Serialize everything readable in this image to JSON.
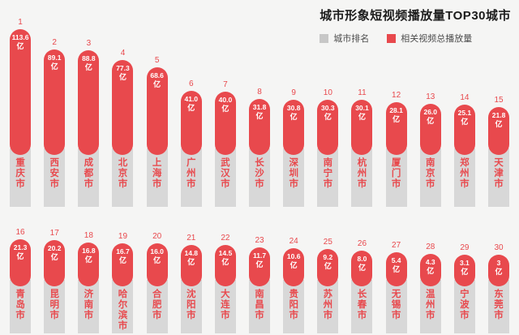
{
  "header": {
    "title": "城市形象短视频播放量TOP30城市"
  },
  "legend": [
    {
      "label": "城市排名",
      "color": "#c7c7c7"
    },
    {
      "label": "相关视频总播放量",
      "color": "#e8494d"
    }
  ],
  "colors": {
    "bar_red": "#e8494d",
    "track_gray": "#d8d8d8",
    "background": "#f5f5f4",
    "title_text": "#1c1c1c",
    "legend_text": "#4c4c4c",
    "value_text": "#ffffff"
  },
  "chart_data": {
    "type": "bar",
    "title": "城市形象短视频播放量TOP30城市",
    "unit": "亿",
    "legend": [
      "城市排名",
      "相关视频总播放量"
    ],
    "layout": "two-row lollipop bars, ranks above bars, vertical city names in gray tracks below",
    "rows": [
      {
        "items": [
          {
            "rank": 1,
            "city": "重庆市",
            "label": "113.6",
            "value": 113.6
          },
          {
            "rank": 2,
            "city": "西安市",
            "label": "89.1",
            "value": 89.1
          },
          {
            "rank": 3,
            "city": "成都市",
            "label": "88.8",
            "value": 88.8
          },
          {
            "rank": 4,
            "city": "北京市",
            "label": "77.3",
            "value": 77.3
          },
          {
            "rank": 5,
            "city": "上海市",
            "label": "68.6",
            "value": 68.6
          },
          {
            "rank": 6,
            "city": "广州市",
            "label": "41.0",
            "value": 41.0
          },
          {
            "rank": 7,
            "city": "武汉市",
            "label": "40.0",
            "value": 40.0
          },
          {
            "rank": 8,
            "city": "长沙市",
            "label": "31.8",
            "value": 31.8
          },
          {
            "rank": 9,
            "city": "深圳市",
            "label": "30.8",
            "value": 30.8
          },
          {
            "rank": 10,
            "city": "南宁市",
            "label": "30.3",
            "value": 30.3
          },
          {
            "rank": 11,
            "city": "杭州市",
            "label": "30.1",
            "value": 30.1
          },
          {
            "rank": 12,
            "city": "厦门市",
            "label": "28.1",
            "value": 28.1
          },
          {
            "rank": 13,
            "city": "南京市",
            "label": "26.0",
            "value": 26.0
          },
          {
            "rank": 14,
            "city": "郑州市",
            "label": "25.1",
            "value": 25.1
          },
          {
            "rank": 15,
            "city": "天津市",
            "label": "21.8",
            "value": 21.8
          }
        ]
      },
      {
        "items": [
          {
            "rank": 16,
            "city": "青岛市",
            "label": "21.3",
            "value": 21.3
          },
          {
            "rank": 17,
            "city": "昆明市",
            "label": "20.2",
            "value": 20.2
          },
          {
            "rank": 18,
            "city": "济南市",
            "label": "16.8",
            "value": 16.8
          },
          {
            "rank": 19,
            "city": "哈尔滨市",
            "label": "16.7",
            "value": 16.7
          },
          {
            "rank": 20,
            "city": "合肥市",
            "label": "16.0",
            "value": 16.0
          },
          {
            "rank": 21,
            "city": "沈阳市",
            "label": "14.8",
            "value": 14.8
          },
          {
            "rank": 22,
            "city": "大连市",
            "label": "14.5",
            "value": 14.5
          },
          {
            "rank": 23,
            "city": "南昌市",
            "label": "11.7",
            "value": 11.7
          },
          {
            "rank": 24,
            "city": "贵阳市",
            "label": "10.6",
            "value": 10.6
          },
          {
            "rank": 25,
            "city": "苏州市",
            "label": "9.2",
            "value": 9.2
          },
          {
            "rank": 26,
            "city": "长春市",
            "label": "8.0",
            "value": 8.0
          },
          {
            "rank": 27,
            "city": "无锡市",
            "label": "5.4",
            "value": 5.4
          },
          {
            "rank": 28,
            "city": "温州市",
            "label": "4.3",
            "value": 4.3
          },
          {
            "rank": 29,
            "city": "宁波市",
            "label": "3.1",
            "value": 3.1
          },
          {
            "rank": 30,
            "city": "东莞市",
            "label": "3",
            "value": 3.0
          }
        ]
      }
    ]
  }
}
